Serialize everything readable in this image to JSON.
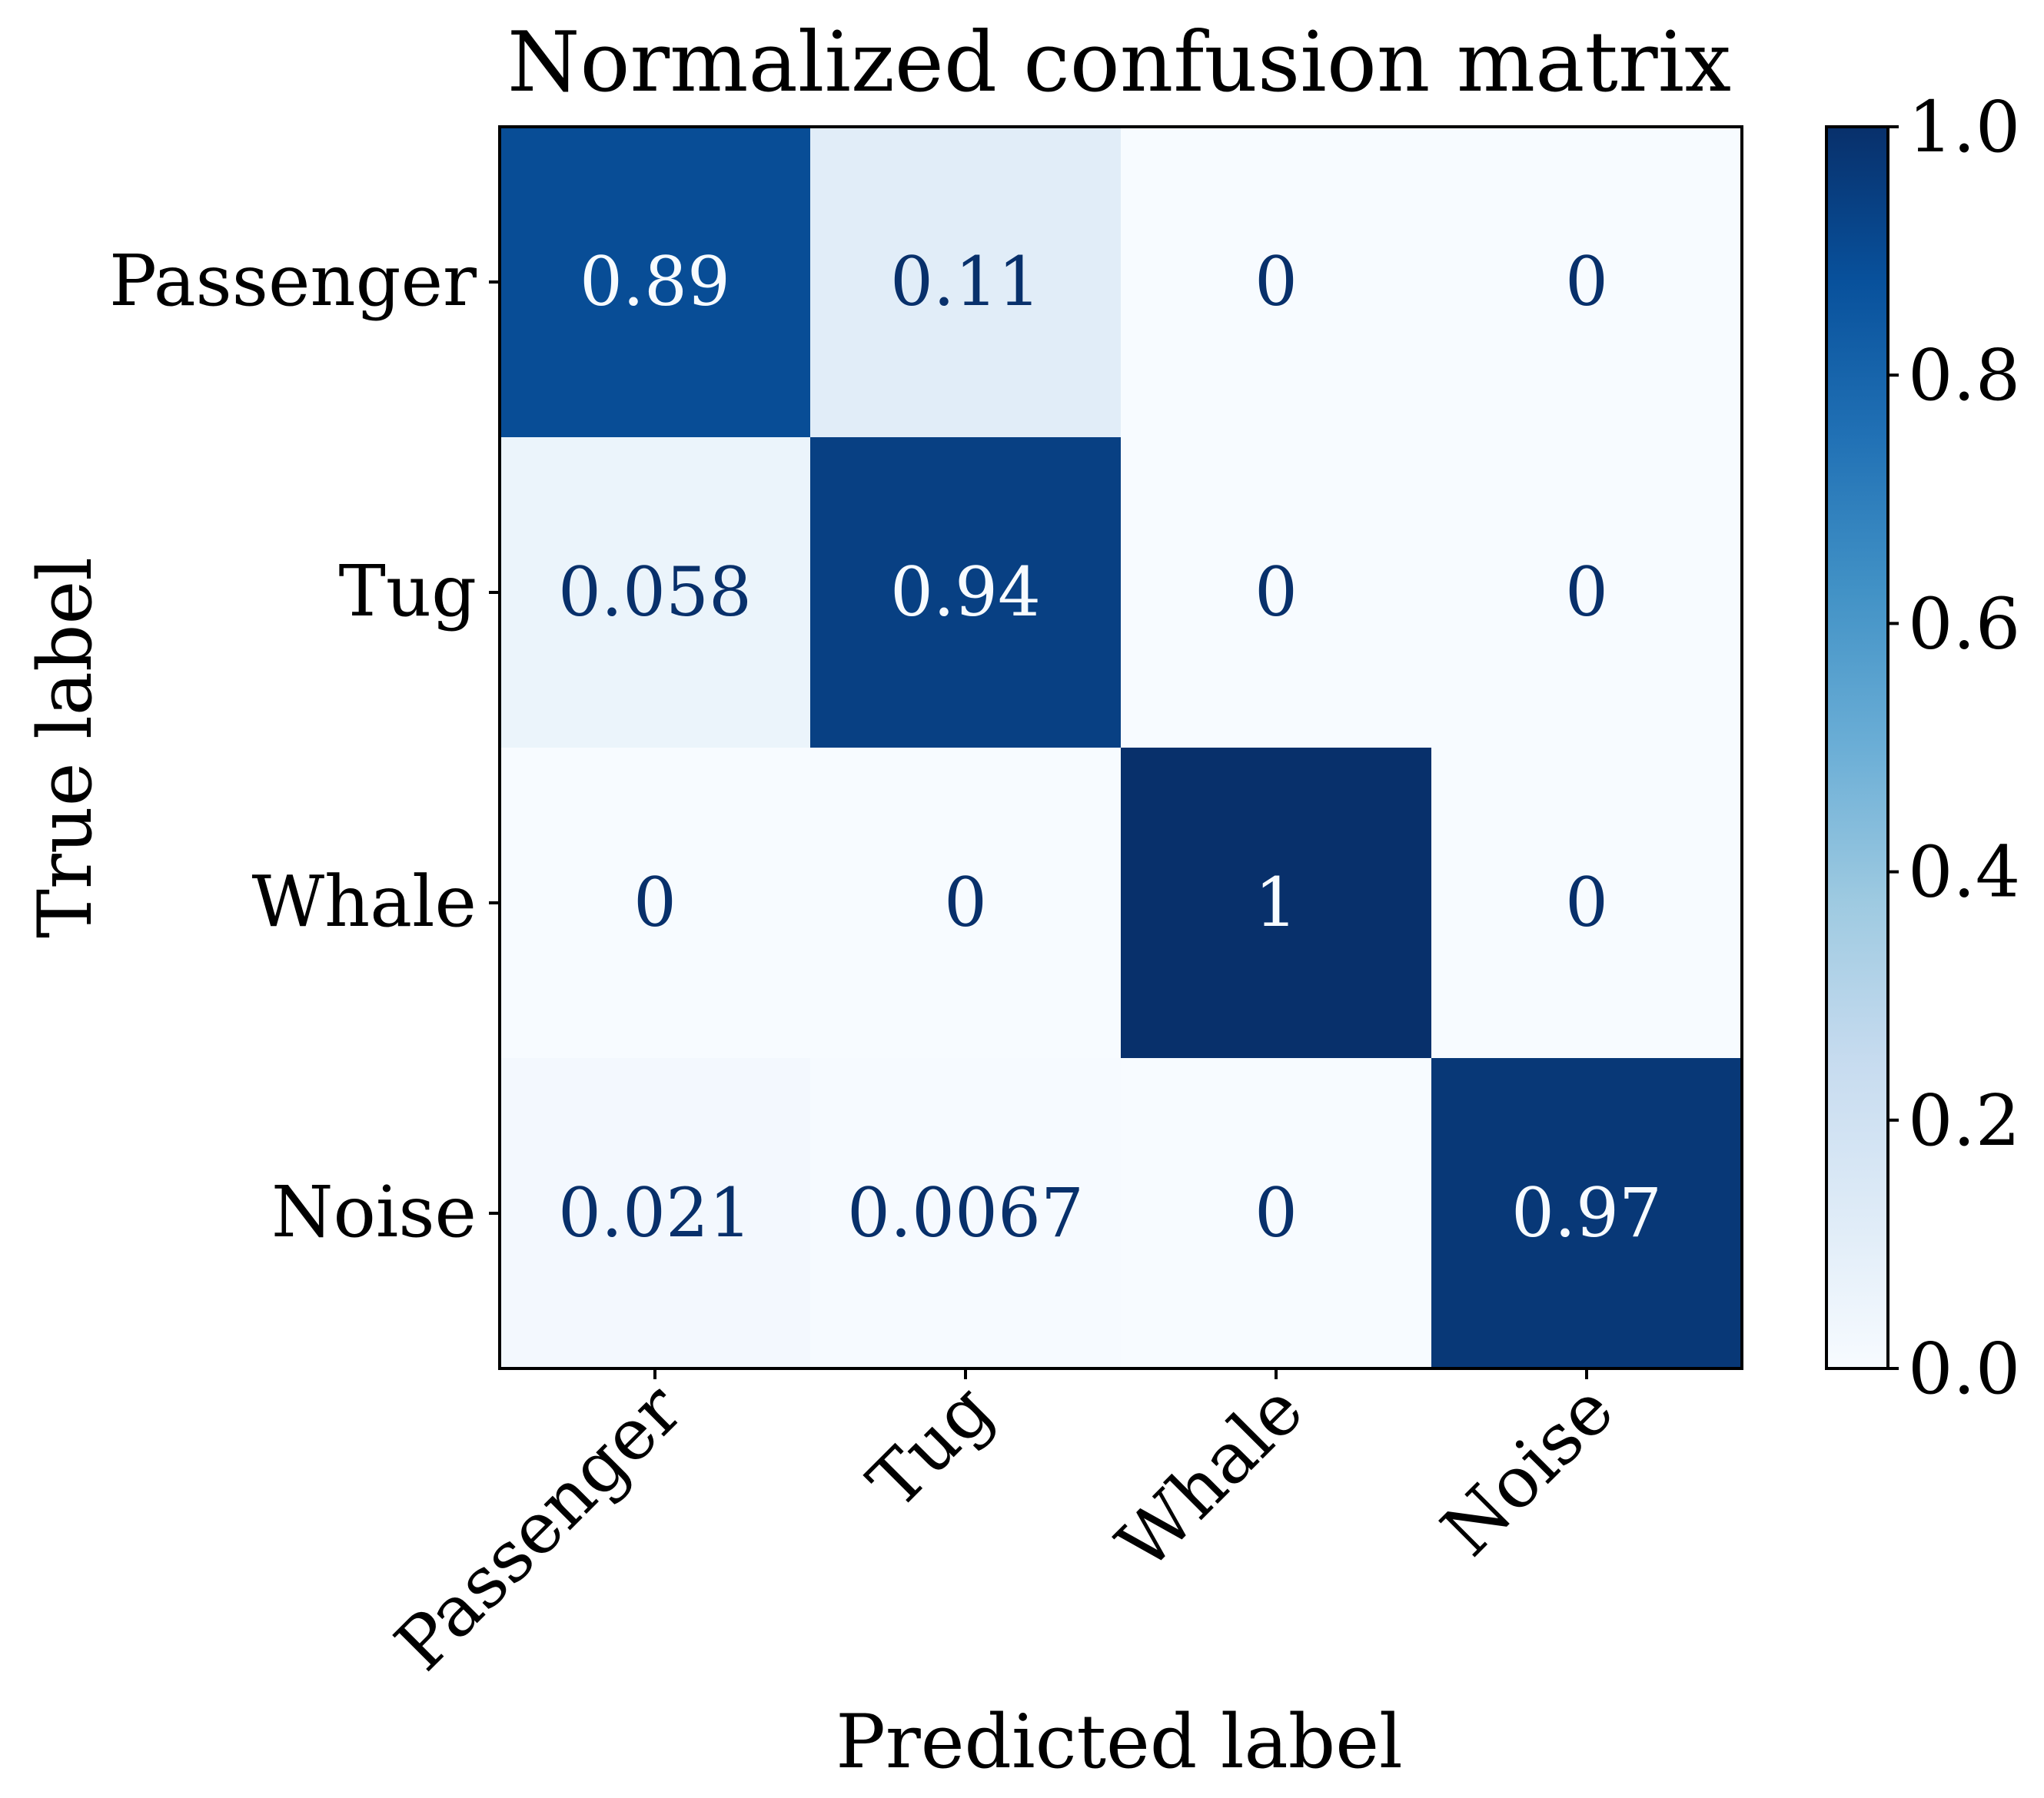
{
  "chart_data": {
    "type": "heatmap",
    "title": "Normalized confusion matrix",
    "xlabel": "Predicted label",
    "ylabel": "True label",
    "x_categories": [
      "Passenger",
      "Tug",
      "Whale",
      "Noise"
    ],
    "y_categories": [
      "Passenger",
      "Tug",
      "Whale",
      "Noise"
    ],
    "values": [
      [
        0.89,
        0.11,
        0,
        0
      ],
      [
        0.058,
        0.94,
        0,
        0
      ],
      [
        0,
        0,
        1,
        0
      ],
      [
        0.021,
        0.0067,
        0,
        0.97
      ]
    ],
    "cell_labels": [
      [
        "0.89",
        "0.11",
        "0",
        "0"
      ],
      [
        "0.058",
        "0.94",
        "0",
        "0"
      ],
      [
        "0",
        "0",
        "1",
        "0"
      ],
      [
        "0.021",
        "0.0067",
        "0",
        "0.97"
      ]
    ],
    "colormap": "Blues",
    "colorbar": {
      "range": [
        0.0,
        1.0
      ],
      "ticks": [
        "0.0",
        "0.2",
        "0.4",
        "0.6",
        "0.8",
        "1.0"
      ]
    },
    "colors": {
      "dark_text": "#08306b",
      "light_text": "#f7fbff"
    }
  }
}
